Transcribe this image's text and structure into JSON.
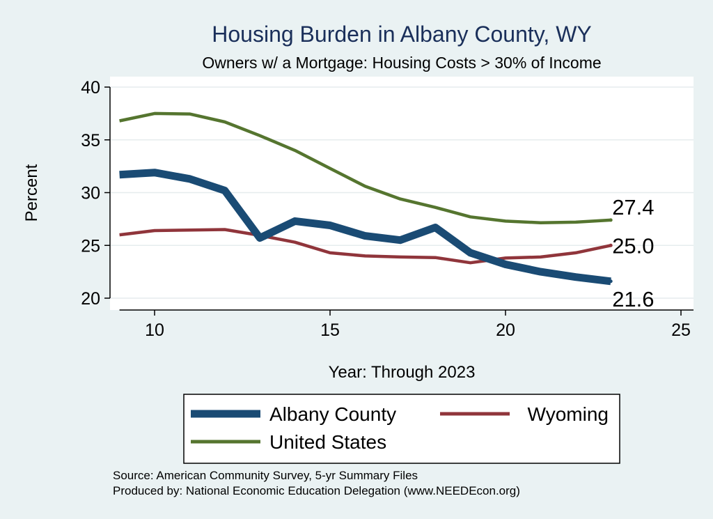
{
  "chart_data": {
    "type": "line",
    "title": "Housing Burden in Albany County, WY",
    "subtitle": "Owners w/ a Mortgage: Housing Costs > 30% of Income",
    "xlabel": "Year: Through 2023",
    "ylabel": "Percent",
    "xlim": [
      9,
      25
    ],
    "ylim": [
      20,
      40
    ],
    "xticks": [
      10,
      15,
      20,
      25
    ],
    "yticks": [
      20,
      25,
      30,
      35,
      40
    ],
    "grid": true,
    "legend_position": "bottom",
    "x": [
      9,
      10,
      11,
      12,
      13,
      14,
      15,
      16,
      17,
      18,
      19,
      20,
      21,
      22,
      23
    ],
    "series": [
      {
        "name": "Albany County",
        "color": "#1a4b74",
        "values": [
          31.7,
          31.9,
          31.3,
          30.2,
          25.7,
          27.3,
          26.9,
          25.9,
          25.5,
          26.7,
          24.3,
          23.2,
          22.5,
          22.0,
          21.6
        ],
        "end_label": "21.6"
      },
      {
        "name": "Wyoming",
        "color": "#90353b",
        "values": [
          26.0,
          26.4,
          26.45,
          26.5,
          25.95,
          25.3,
          24.3,
          24.0,
          23.9,
          23.85,
          23.35,
          23.8,
          23.9,
          24.3,
          25.0
        ],
        "end_label": "25.0"
      },
      {
        "name": "United States",
        "color": "#55752f",
        "values": [
          36.8,
          37.5,
          37.45,
          36.7,
          35.4,
          34.0,
          32.3,
          30.6,
          29.4,
          28.6,
          27.7,
          27.3,
          27.15,
          27.2,
          27.4
        ],
        "end_label": "27.4"
      }
    ],
    "source_note": "Source: American Community Survey, 5-yr Summary Files",
    "produced_note": "Produced by: National Economic Education Delegation (www.NEEDEcon.org)"
  }
}
